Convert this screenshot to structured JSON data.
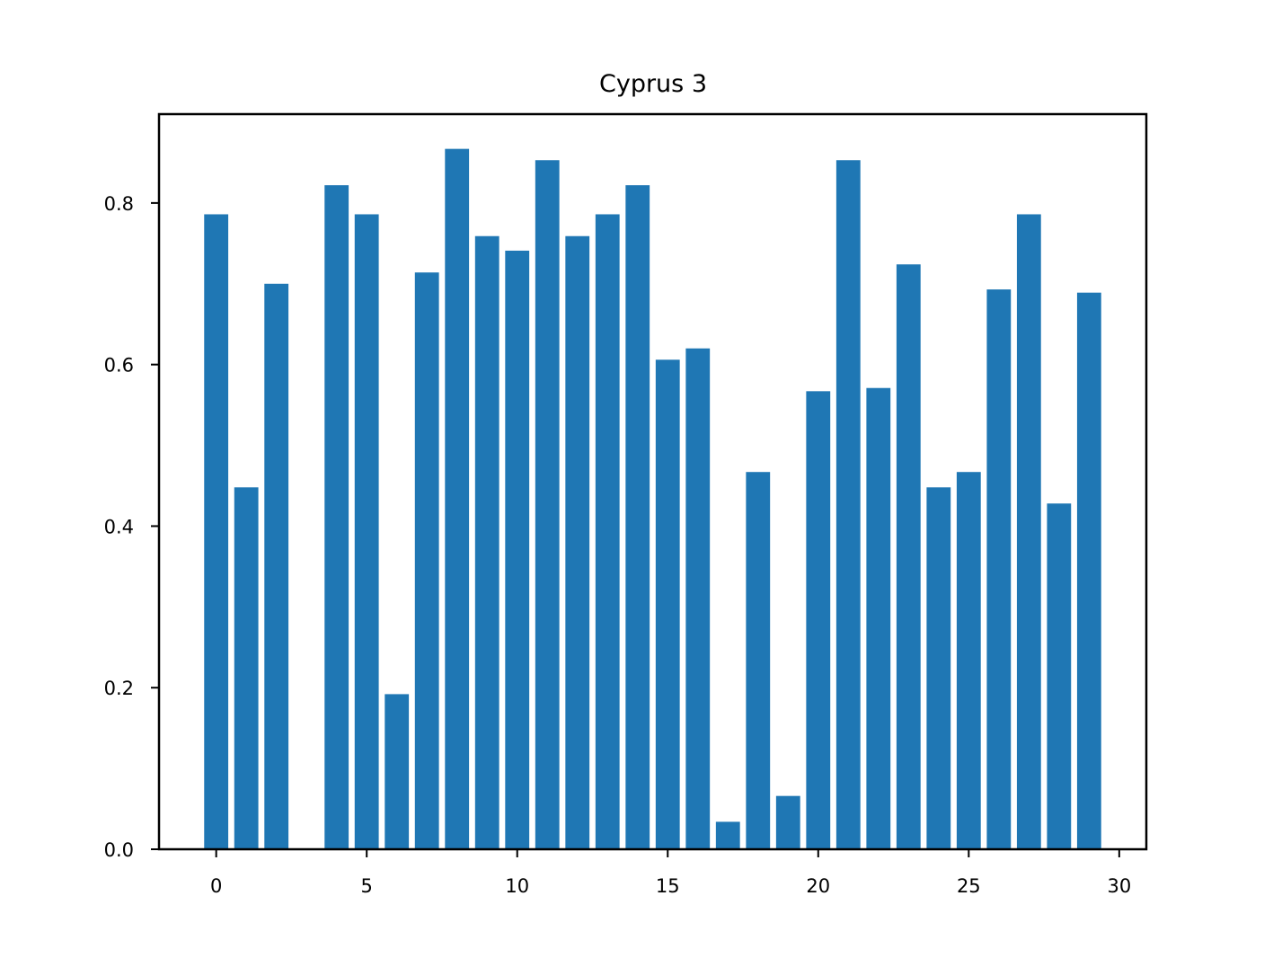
{
  "chart_data": {
    "type": "bar",
    "title": "Cyprus 3",
    "xlabel": "",
    "ylabel": "",
    "x": [
      0,
      1,
      2,
      3,
      4,
      5,
      6,
      7,
      8,
      9,
      10,
      11,
      12,
      13,
      14,
      15,
      16,
      17,
      18,
      19,
      20,
      21,
      22,
      23,
      24,
      25,
      26,
      27,
      28,
      29
    ],
    "values": [
      0.786,
      0.448,
      0.7,
      0.0,
      0.822,
      0.786,
      0.192,
      0.714,
      0.867,
      0.759,
      0.741,
      0.853,
      0.759,
      0.786,
      0.822,
      0.606,
      0.62,
      0.034,
      0.467,
      0.066,
      0.567,
      0.853,
      0.571,
      0.724,
      0.448,
      0.467,
      0.693,
      0.786,
      0.428,
      0.689
    ],
    "xlim": [
      -1.9,
      30.9
    ],
    "ylim": [
      0.0,
      0.91
    ],
    "xticks": [
      0,
      5,
      10,
      15,
      20,
      25,
      30
    ],
    "xtick_labels": [
      "0",
      "5",
      "10",
      "15",
      "20",
      "25",
      "30"
    ],
    "yticks": [
      0.0,
      0.2,
      0.4,
      0.6,
      0.8
    ],
    "ytick_labels": [
      "0.0",
      "0.2",
      "0.4",
      "0.6",
      "0.8"
    ],
    "bar_width": 0.8,
    "grid": false,
    "legend": "none",
    "colors": {
      "bar": "#1f77b4",
      "axis": "#000000",
      "background": "#ffffff"
    }
  }
}
